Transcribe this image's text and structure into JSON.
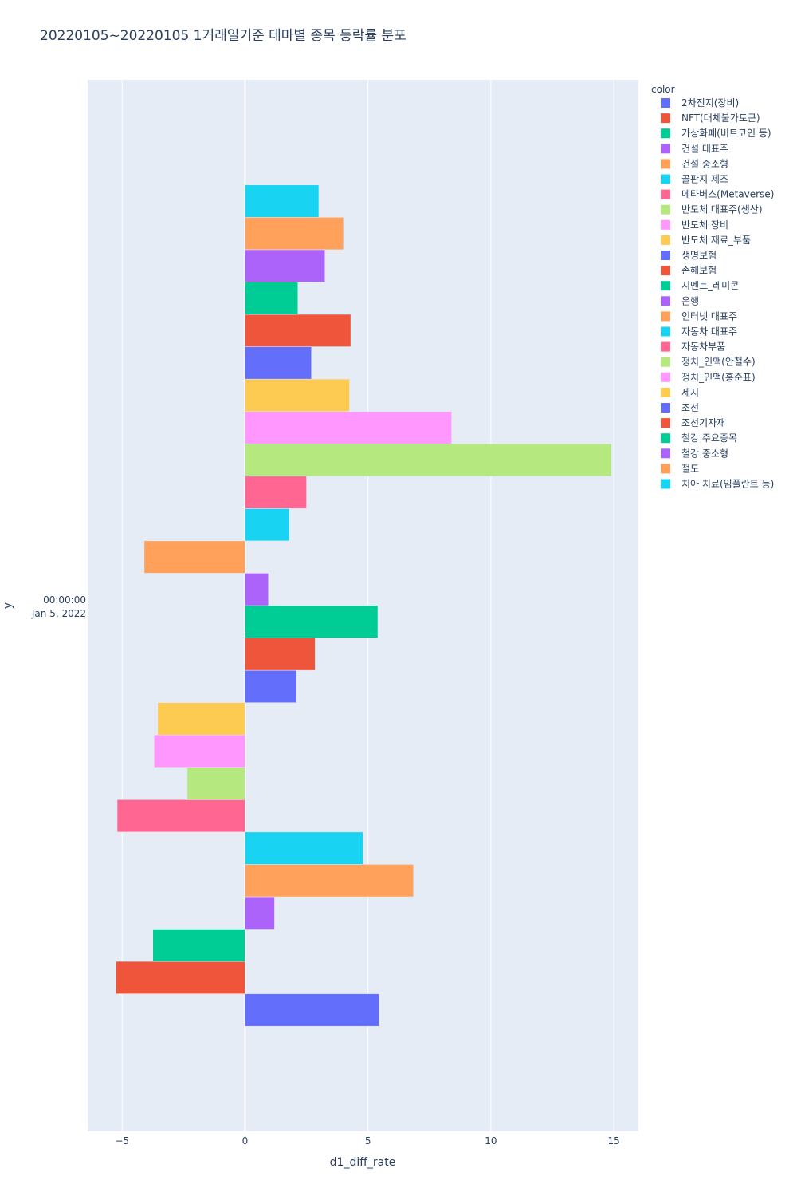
{
  "chart_data": {
    "type": "bar",
    "orientation": "horizontal",
    "barmode": "group",
    "title": "20220105~20220105 1거래일기준 테마별 종목 등락률 분포",
    "xlabel": "d1_diff_rate",
    "ylabel": "y",
    "y_category": [
      "00:00:00",
      "Jan 5, 2022"
    ],
    "xlim": [
      -6.4,
      16
    ],
    "xticks": [
      -5,
      0,
      5,
      10,
      15
    ],
    "xtick_labels": [
      "−5",
      "0",
      "5",
      "10",
      "15"
    ],
    "grid": true,
    "legend_title": "color",
    "legend_position": "right",
    "series": [
      {
        "name": "2차전지(장비)",
        "value": 5.45,
        "color": "#636efa"
      },
      {
        "name": "NFT(대체불가토큰)",
        "value": -5.25,
        "color": "#EF553B"
      },
      {
        "name": "가상화폐(비트코인 등)",
        "value": -3.75,
        "color": "#00cc96"
      },
      {
        "name": "건설 대표주",
        "value": 1.2,
        "color": "#ab63fa"
      },
      {
        "name": "건설 중소형",
        "value": 6.85,
        "color": "#FFA15A"
      },
      {
        "name": "골판지 제조",
        "value": 4.8,
        "color": "#19d3f3"
      },
      {
        "name": "메타버스(Metaverse)",
        "value": -5.2,
        "color": "#FF6692"
      },
      {
        "name": "반도체 대표주(생산)",
        "value": -2.35,
        "color": "#B6E880"
      },
      {
        "name": "반도체 장비",
        "value": -3.7,
        "color": "#FF97FF"
      },
      {
        "name": "반도체 재료_부품",
        "value": -3.55,
        "color": "#FECB52"
      },
      {
        "name": "생명보험",
        "value": 2.1,
        "color": "#636efa"
      },
      {
        "name": "손해보험",
        "value": 2.85,
        "color": "#EF553B"
      },
      {
        "name": "시멘트_레미콘",
        "value": 5.4,
        "color": "#00cc96"
      },
      {
        "name": "은행",
        "value": 0.95,
        "color": "#ab63fa"
      },
      {
        "name": "인터넷 대표주",
        "value": -4.1,
        "color": "#FFA15A"
      },
      {
        "name": "자동차 대표주",
        "value": 1.8,
        "color": "#19d3f3"
      },
      {
        "name": "자동차부품",
        "value": 2.5,
        "color": "#FF6692"
      },
      {
        "name": "정치_인맥(안철수)",
        "value": 14.9,
        "color": "#B6E880"
      },
      {
        "name": "정치_인맥(홍준표)",
        "value": 8.4,
        "color": "#FF97FF"
      },
      {
        "name": "제지",
        "value": 4.25,
        "color": "#FECB52"
      },
      {
        "name": "조선",
        "value": 2.7,
        "color": "#636efa"
      },
      {
        "name": "조선기자재",
        "value": 4.3,
        "color": "#EF553B"
      },
      {
        "name": "철강 주요종목",
        "value": 2.15,
        "color": "#00cc96"
      },
      {
        "name": "철강 중소형",
        "value": 3.25,
        "color": "#ab63fa"
      },
      {
        "name": "철도",
        "value": 4.0,
        "color": "#FFA15A"
      },
      {
        "name": "치아 치료(임플란트 등)",
        "value": 3.0,
        "color": "#19d3f3"
      }
    ]
  }
}
